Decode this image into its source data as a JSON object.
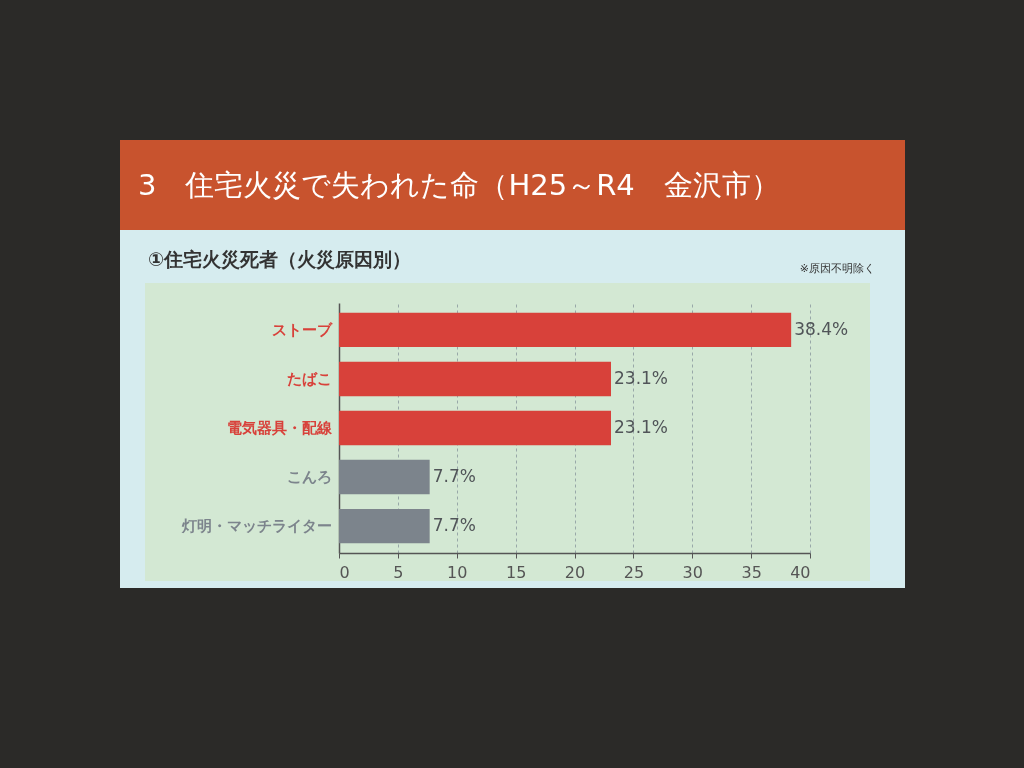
{
  "chart_data": {
    "type": "bar",
    "orientation": "horizontal",
    "title": "3　住宅火災で失われた命（H25～R4　金沢市）",
    "subtitle": "①住宅火災死者（火災原因別）",
    "annotations": [
      "※原因不明除く"
    ],
    "categories": [
      "ストーブ",
      "たばこ",
      "電気器具・配線",
      "こんろ",
      "灯明・マッチライター"
    ],
    "values": [
      38.4,
      23.1,
      23.1,
      7.7,
      7.7
    ],
    "value_labels": [
      "38.4%",
      "23.1%",
      "23.1%",
      "7.7%",
      "7.7%"
    ],
    "colors": [
      "#d8413a",
      "#d8413a",
      "#d8413a",
      "#7c848c",
      "#7c848c"
    ],
    "xlim": [
      0,
      40
    ],
    "xticks": [
      0,
      5,
      10,
      15,
      20,
      25,
      30,
      35,
      40
    ],
    "grid": "x"
  }
}
